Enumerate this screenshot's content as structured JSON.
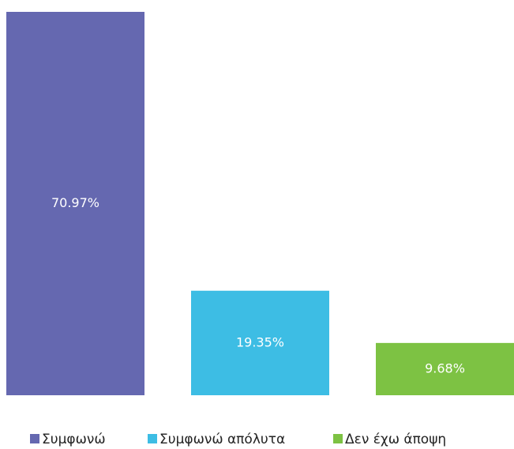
{
  "chart_data": {
    "type": "bar",
    "categories": [
      null
    ],
    "series": [
      {
        "name": "Συμφωνώ",
        "color": "#6568b0",
        "values": [
          70.97
        ],
        "value_labels": [
          "70.97%"
        ]
      },
      {
        "name": "Συμφωνώ απόλυτα",
        "color": "#3dbde4",
        "values": [
          19.35
        ],
        "value_labels": [
          "19.35%"
        ]
      },
      {
        "name": "Δεν έχω άποψη",
        "color": "#7dc243",
        "values": [
          9.68
        ],
        "value_labels": [
          "9.68%"
        ]
      }
    ]
  }
}
